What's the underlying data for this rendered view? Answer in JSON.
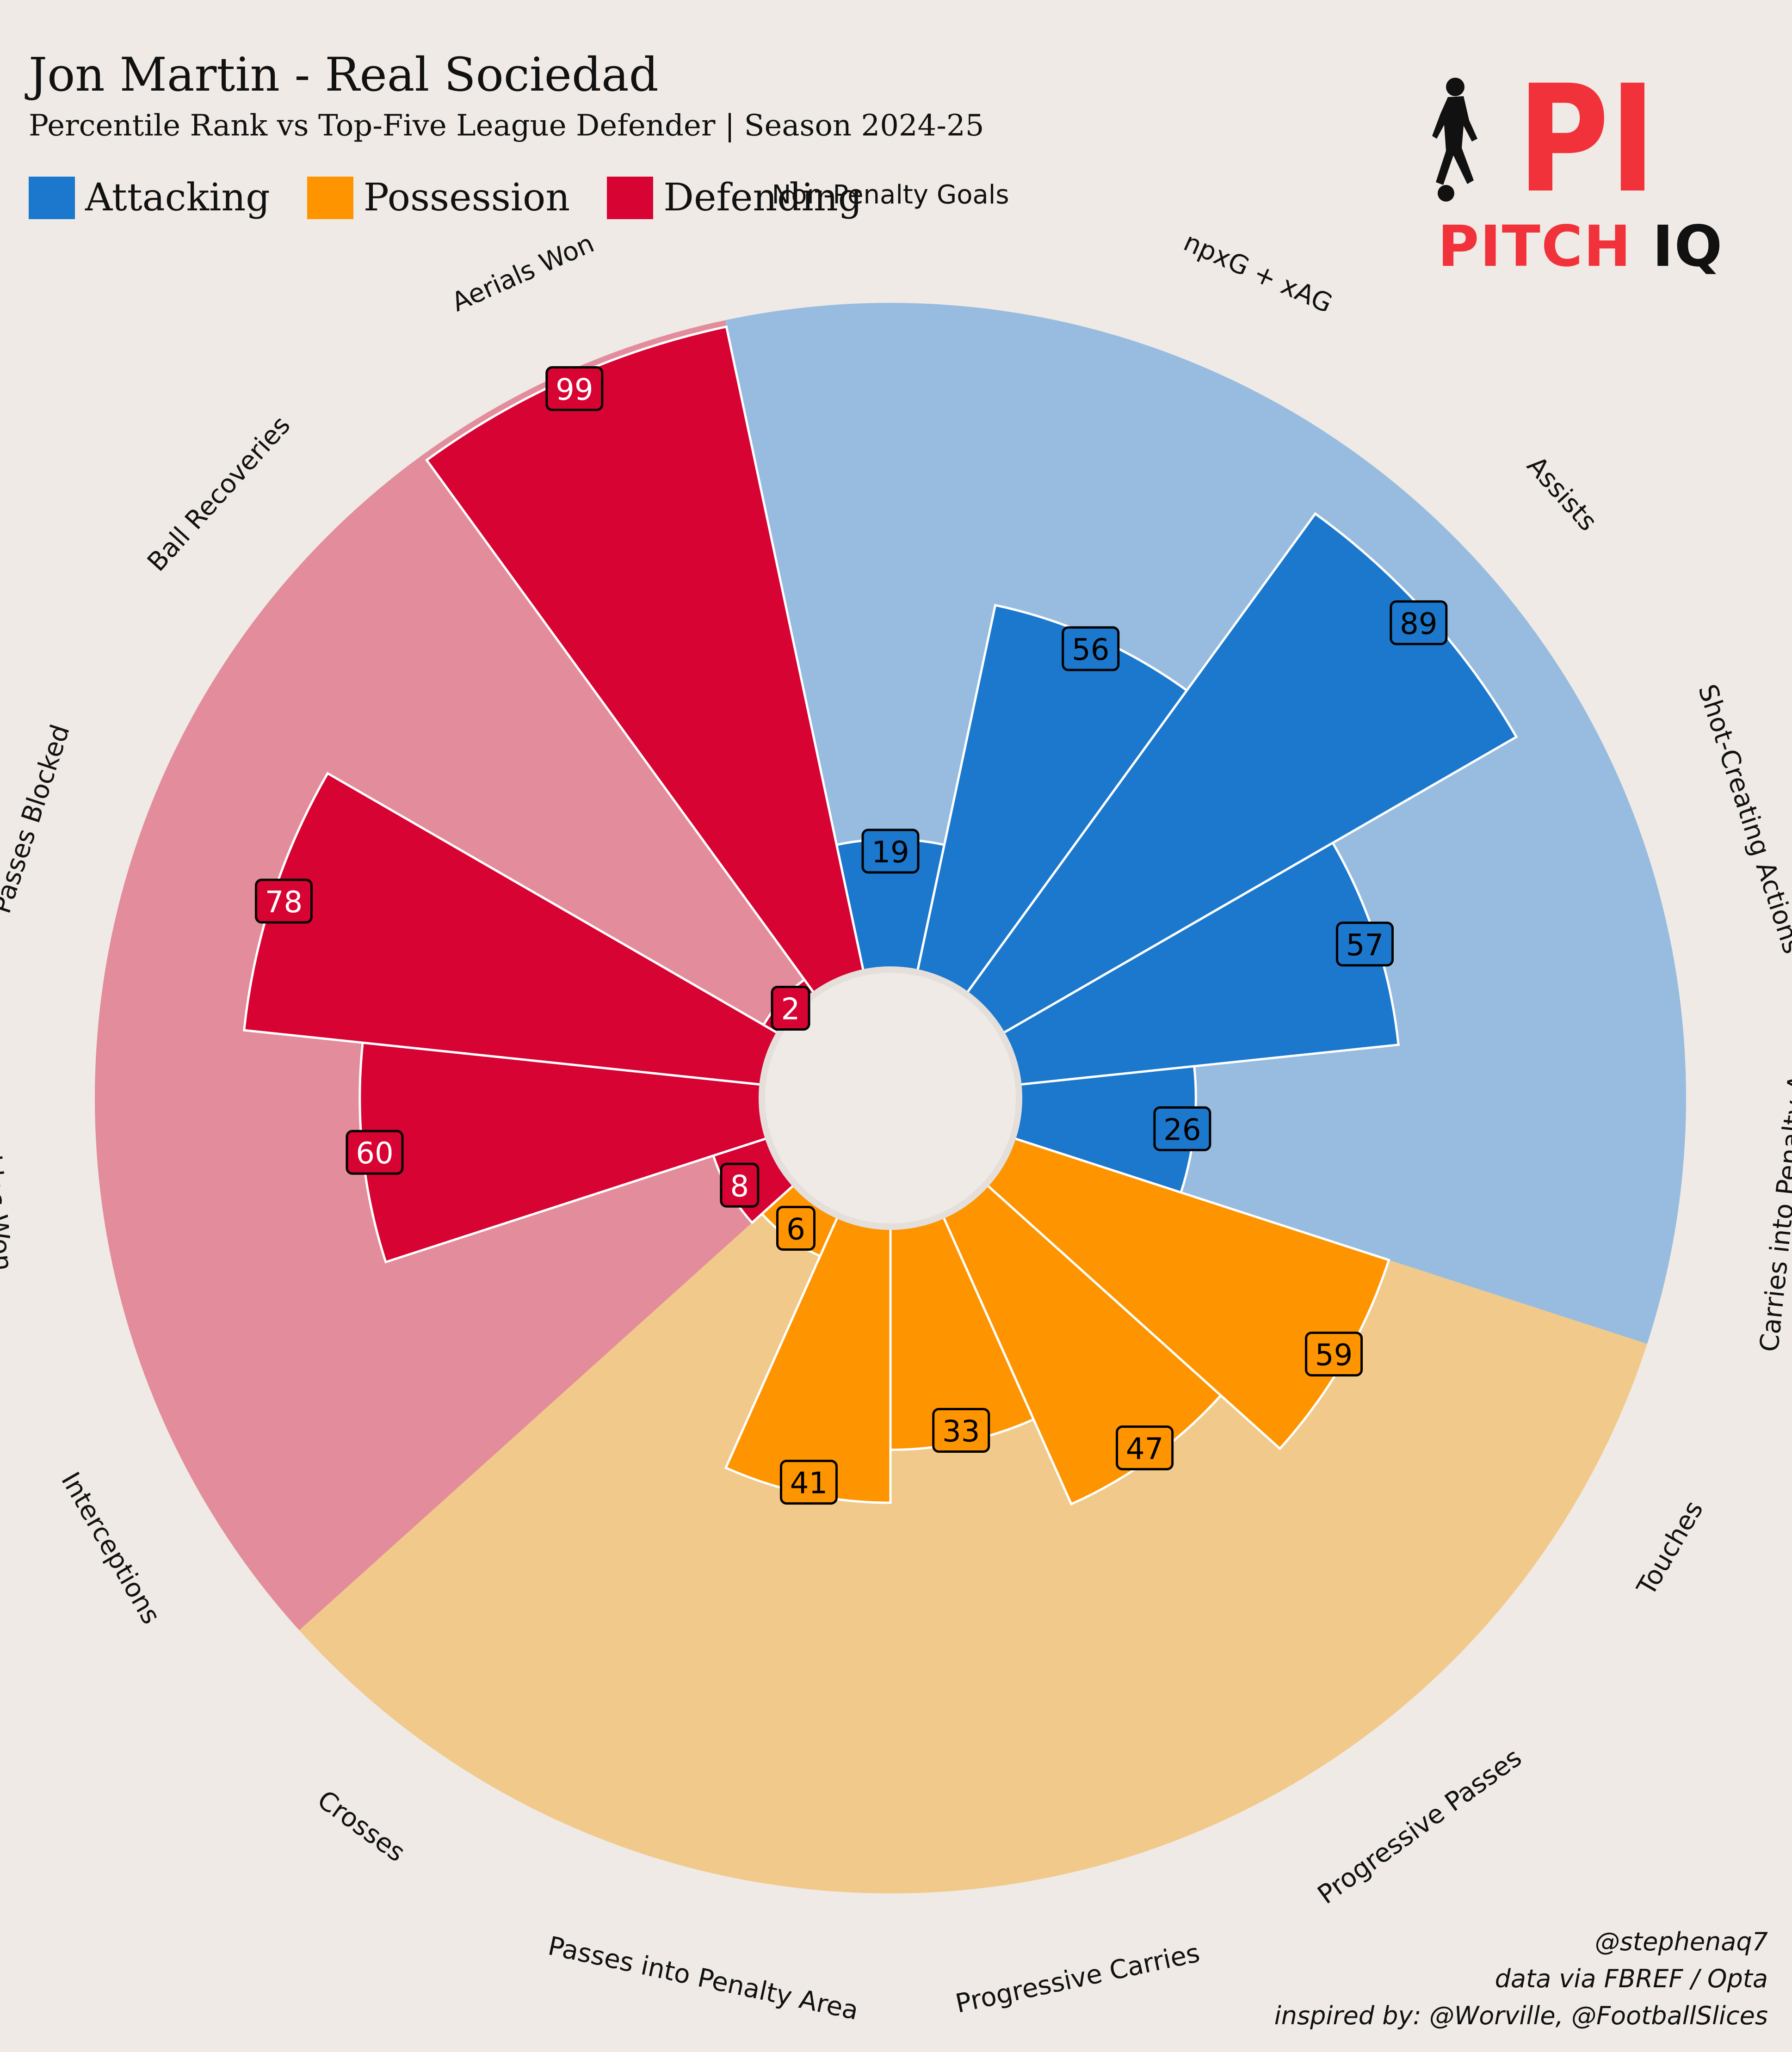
{
  "header": {
    "title": "Jon Martin - Real Sociedad",
    "subtitle": "Percentile Rank vs Top-Five League Defender | Season 2024-25"
  },
  "legend": [
    {
      "label": "Attacking",
      "color": "#1c78cd"
    },
    {
      "label": "Possession",
      "color": "#fd9400"
    },
    {
      "label": "Defending",
      "color": "#d70333"
    }
  ],
  "logo": {
    "mark": "PI",
    "text_a": "PITCH",
    "text_b": "IQ",
    "icon": "footballer-icon"
  },
  "credits": {
    "handle": "@stephenaq7",
    "source": "data via FBREF / Opta",
    "inspired": "inspired by: @Worville, @FootballSlices"
  },
  "chart_data": {
    "type": "radial-bar",
    "scale": [
      0,
      100
    ],
    "colors": {
      "Attacking": {
        "bar": "#1c78cd",
        "bg": "#98bcdf"
      },
      "Possession": {
        "bar": "#fd9400",
        "bg": "#f1c98b"
      },
      "Defending": {
        "bar": "#d70333",
        "bg": "#e38c9b"
      }
    },
    "series": [
      {
        "label": "Non-Penalty Goals",
        "value": 19,
        "group": "Attacking"
      },
      {
        "label": "npxG + xAG",
        "value": 56,
        "group": "Attacking"
      },
      {
        "label": "Assists",
        "value": 89,
        "group": "Attacking"
      },
      {
        "label": "Shot-Creating Actions",
        "value": 57,
        "group": "Attacking"
      },
      {
        "label": "Carries into Penalty Area",
        "value": 26,
        "group": "Attacking"
      },
      {
        "label": "Touches",
        "value": 59,
        "group": "Possession"
      },
      {
        "label": "Progressive Passes",
        "value": 47,
        "group": "Possession"
      },
      {
        "label": "Progressive Carries",
        "value": 33,
        "group": "Possession"
      },
      {
        "label": "Passes into Penalty Area",
        "value": 41,
        "group": "Possession"
      },
      {
        "label": "Crosses",
        "value": 6,
        "group": "Possession"
      },
      {
        "label": "Interceptions",
        "value": 8,
        "group": "Defending"
      },
      {
        "label": "Tackles Won",
        "value": 60,
        "group": "Defending"
      },
      {
        "label": "Passes Blocked",
        "value": 78,
        "group": "Defending"
      },
      {
        "label": "Ball Recoveries",
        "value": 2,
        "group": "Defending"
      },
      {
        "label": "Aerials Won",
        "value": 99,
        "group": "Defending"
      }
    ]
  }
}
